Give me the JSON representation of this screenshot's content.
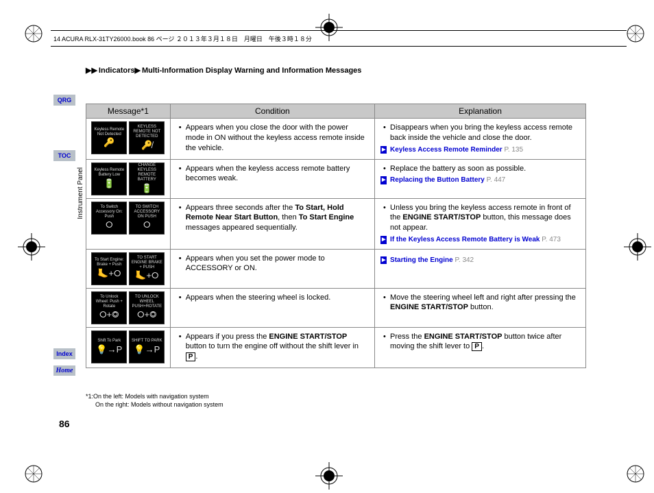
{
  "header": {
    "text": "14 ACURA RLX-31TY26000.book  86 ページ  ２０１３年３月１８日　月曜日　午後３時１８分"
  },
  "breadcrumb": {
    "l1": "Indicators",
    "l2": "Multi-Information Display Warning and Information Messages"
  },
  "sidebar": {
    "qrg": "QRG",
    "toc": "TOC",
    "index": "Index",
    "home": "Home"
  },
  "vertical_label": "Instrument Panel",
  "page_number": "86",
  "table": {
    "headers": {
      "msg": "Message*1",
      "cond": "Condition",
      "exp": "Explanation"
    },
    "rows": [
      {
        "icons": [
          {
            "text": "Keyless Remote Not Detected",
            "glyph": "🔑"
          },
          {
            "text": "KEYLESS REMOTE NOT DETECTED",
            "glyph": "🔑̸"
          }
        ],
        "condition": "Appears when you close the door with the power mode in ON without the keyless access remote inside the vehicle.",
        "explanation": "Disappears when you bring the keyless access remote back inside the vehicle and close the door.",
        "link": {
          "text": "Keyless Access Remote Reminder",
          "page": "P. 135"
        }
      },
      {
        "icons": [
          {
            "text": "Keyless Remote Battery Low",
            "glyph": "🔋"
          },
          {
            "text": "CHANGE KEYLESS REMOTE BATTERY",
            "glyph": "🔋"
          }
        ],
        "condition": "Appears when the keyless access remote battery becomes weak.",
        "explanation": "Replace the battery as soon as possible.",
        "link": {
          "text": "Replacing the Button Battery",
          "page": "P. 447"
        }
      },
      {
        "icons": [
          {
            "text": "To Switch Accessory On: Push",
            "glyph": "⭘"
          },
          {
            "text": "TO SWITCH ACCESSORY ON PUSH",
            "glyph": "⭘"
          }
        ],
        "condition_html": "Appears three seconds after the <b>To Start, Hold Remote Near Start Button</b>, then <b>To Start Engine</b> messages appeared sequentially.",
        "explanation_html": "Unless you bring the keyless access remote in front of the <b>ENGINE START/STOP</b> button, this message does not appear.",
        "link": {
          "text": "If the Keyless Access Remote Battery is Weak",
          "page": "P. 473"
        }
      },
      {
        "icons": [
          {
            "text": "To Start Engine: Brake + Push",
            "glyph": "🦶+⭘"
          },
          {
            "text": "TO START ENGINE BRAKE + PUSH",
            "glyph": "🦶+⭘"
          }
        ],
        "condition": "Appears when you set the power mode to ACCESSORY or ON.",
        "explanation": "",
        "link": {
          "text": "Starting the Engine",
          "page": "P. 342"
        }
      },
      {
        "icons": [
          {
            "text": "To Unlock Wheel: Push + Rotate",
            "glyph": "⭘+◎"
          },
          {
            "text": "TO UNLOCK WHEEL PUSH+ROTATE",
            "glyph": "⭘+◎"
          }
        ],
        "condition": "Appears when the steering wheel is locked.",
        "explanation_html": "Move the steering wheel left and right after pressing the <b>ENGINE START/STOP</b> button."
      },
      {
        "icons": [
          {
            "text": "Shift To Park",
            "glyph": "💡→P"
          },
          {
            "text": "SHIFT TO PARK",
            "glyph": "💡→P"
          }
        ],
        "condition_html": "Appears if you press the <b>ENGINE START/STOP</b> button to turn the engine off without the shift lever in <span class='p-box'>P</span>.",
        "explanation_html": "Press the <b>ENGINE START/STOP</b> button twice after moving the shift lever to <span class='p-box'>P</span>."
      }
    ]
  },
  "footnote": {
    "l1": "*1:On the left: Models with navigation system",
    "l2": "On the right: Models without navigation system"
  },
  "colors": {
    "sidebar_bg": "#b8c0c8",
    "link_blue": "#0000d0",
    "header_bg": "#c8c8c8",
    "border": "#888888"
  }
}
